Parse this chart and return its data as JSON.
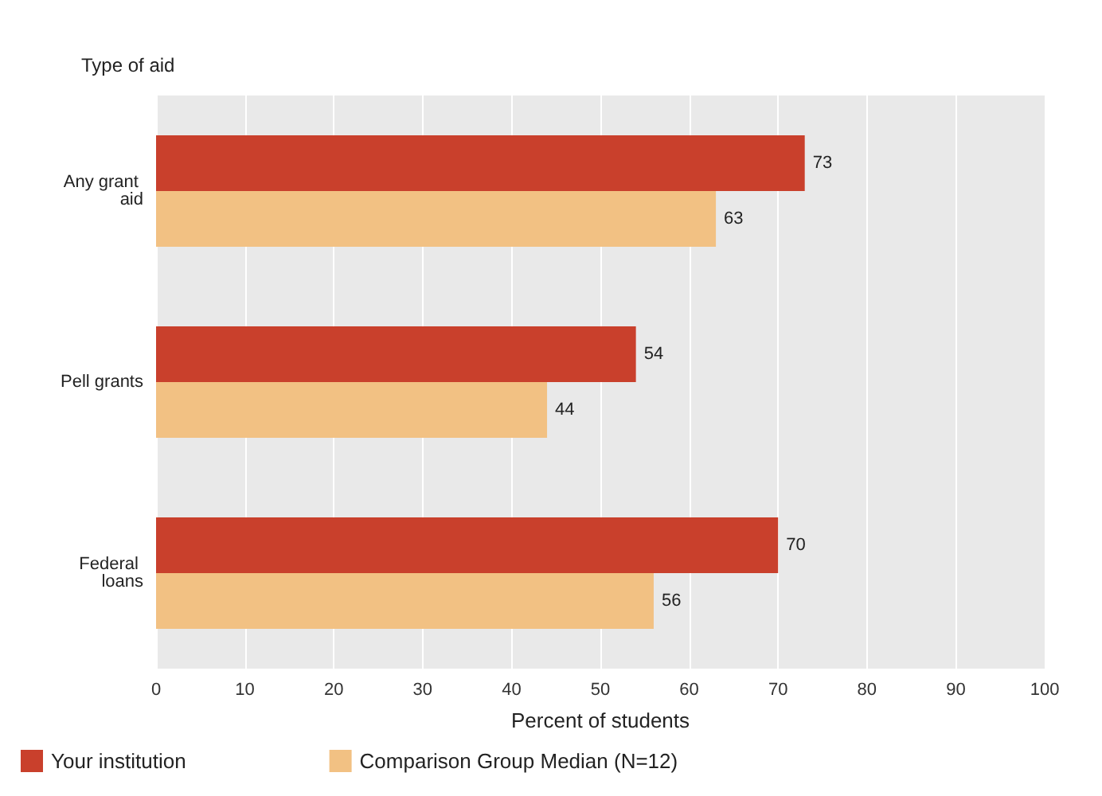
{
  "chart_data": {
    "type": "bar",
    "orientation": "horizontal",
    "ylabel": "Type of aid",
    "xlabel": "Percent of students",
    "categories": [
      "Any grant aid",
      "Pell grants",
      "Federal loans"
    ],
    "series": [
      {
        "name": "Your institution",
        "color": "#c9402c",
        "values": [
          73,
          54,
          70
        ]
      },
      {
        "name": "Comparison Group Median (N=12)",
        "color": "#f2c183",
        "values": [
          63,
          44,
          56
        ]
      }
    ],
    "xlim": [
      0,
      100
    ],
    "xticks": [
      0,
      10,
      20,
      30,
      40,
      50,
      60,
      70,
      80,
      90,
      100
    ],
    "grid": "x",
    "legend": "bottom",
    "data_labels": true
  }
}
